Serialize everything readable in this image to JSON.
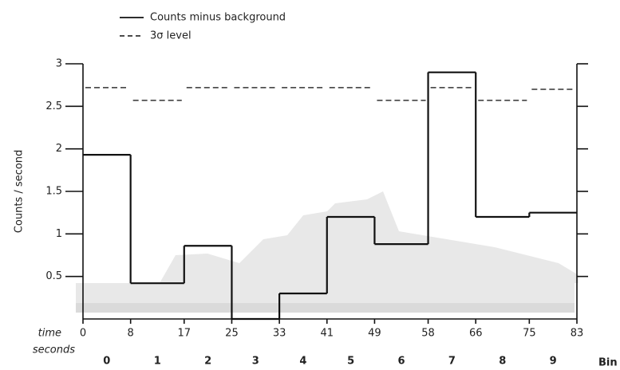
{
  "chart_data": {
    "type": "histogram",
    "bins": [
      0,
      8,
      17,
      25,
      33,
      41,
      49,
      58,
      66,
      75,
      83
    ],
    "categories": [
      "0",
      "1",
      "2",
      "3",
      "4",
      "5",
      "6",
      "7",
      "8",
      "9"
    ],
    "category_label": "Bin",
    "xlabel": [
      "time",
      "seconds"
    ],
    "ylabel": "Counts / second",
    "xlim": [
      0,
      83
    ],
    "ylim": [
      0,
      3
    ],
    "yticks": [
      0.5,
      1,
      1.5,
      2,
      2.5,
      3
    ],
    "series": [
      {
        "name": "Counts minus background",
        "color": "#111111",
        "style": "solid",
        "values": [
          1.93,
          0.42,
          0.86,
          0,
          0.3,
          1.2,
          0.88,
          2.9,
          1.2,
          1.25
        ]
      },
      {
        "name": "3σ level",
        "color": "#333333",
        "style": "dashed",
        "values": [
          2.72,
          2.57,
          2.72,
          2.72,
          2.72,
          2.72,
          2.57,
          2.72,
          2.57,
          2.7
        ]
      }
    ]
  }
}
